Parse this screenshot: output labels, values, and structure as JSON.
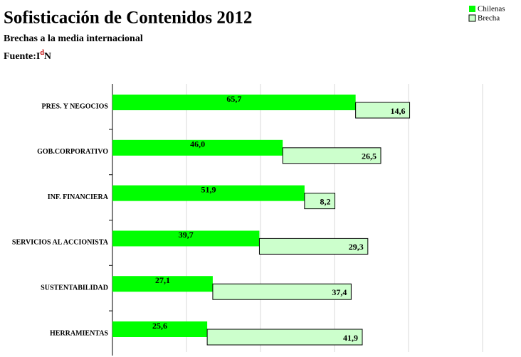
{
  "chart_data": {
    "type": "bar",
    "title": "Sofisticación de Contenidos 2012",
    "subtitle": "Brechas a la media internacional",
    "source": {
      "text": "Fuente:I",
      "superscript": "d",
      "end": "N"
    },
    "orientation": "horizontal",
    "stacked": true,
    "categories": [
      "PRES. Y NEGOCIOS",
      "GOB.CORPORATIVO",
      "INF. FINANCIERA",
      "SERVICIOS AL ACCIONISTA",
      "SUSTENTABILIDAD",
      "HERRAMIENTAS"
    ],
    "series": [
      {
        "name": "Chilenas",
        "color": "#00ff00",
        "values": [
          65.7,
          46.0,
          51.9,
          39.7,
          27.1,
          25.6
        ],
        "value_labels": [
          "65,7",
          "46,0",
          "51,9",
          "39,7",
          "27,1",
          "25,6"
        ]
      },
      {
        "name": "Brecha",
        "color": "#ccffcc",
        "values": [
          14.6,
          26.5,
          8.2,
          29.3,
          37.4,
          41.9
        ],
        "value_labels": [
          "14,6",
          "26,5",
          "8,2",
          "29,3",
          "37,4",
          "41,9"
        ]
      }
    ],
    "xlim": [
      0,
      100
    ],
    "xticks": [
      0,
      20,
      40,
      60,
      80,
      100
    ],
    "grid": true,
    "legend": "top-right"
  }
}
